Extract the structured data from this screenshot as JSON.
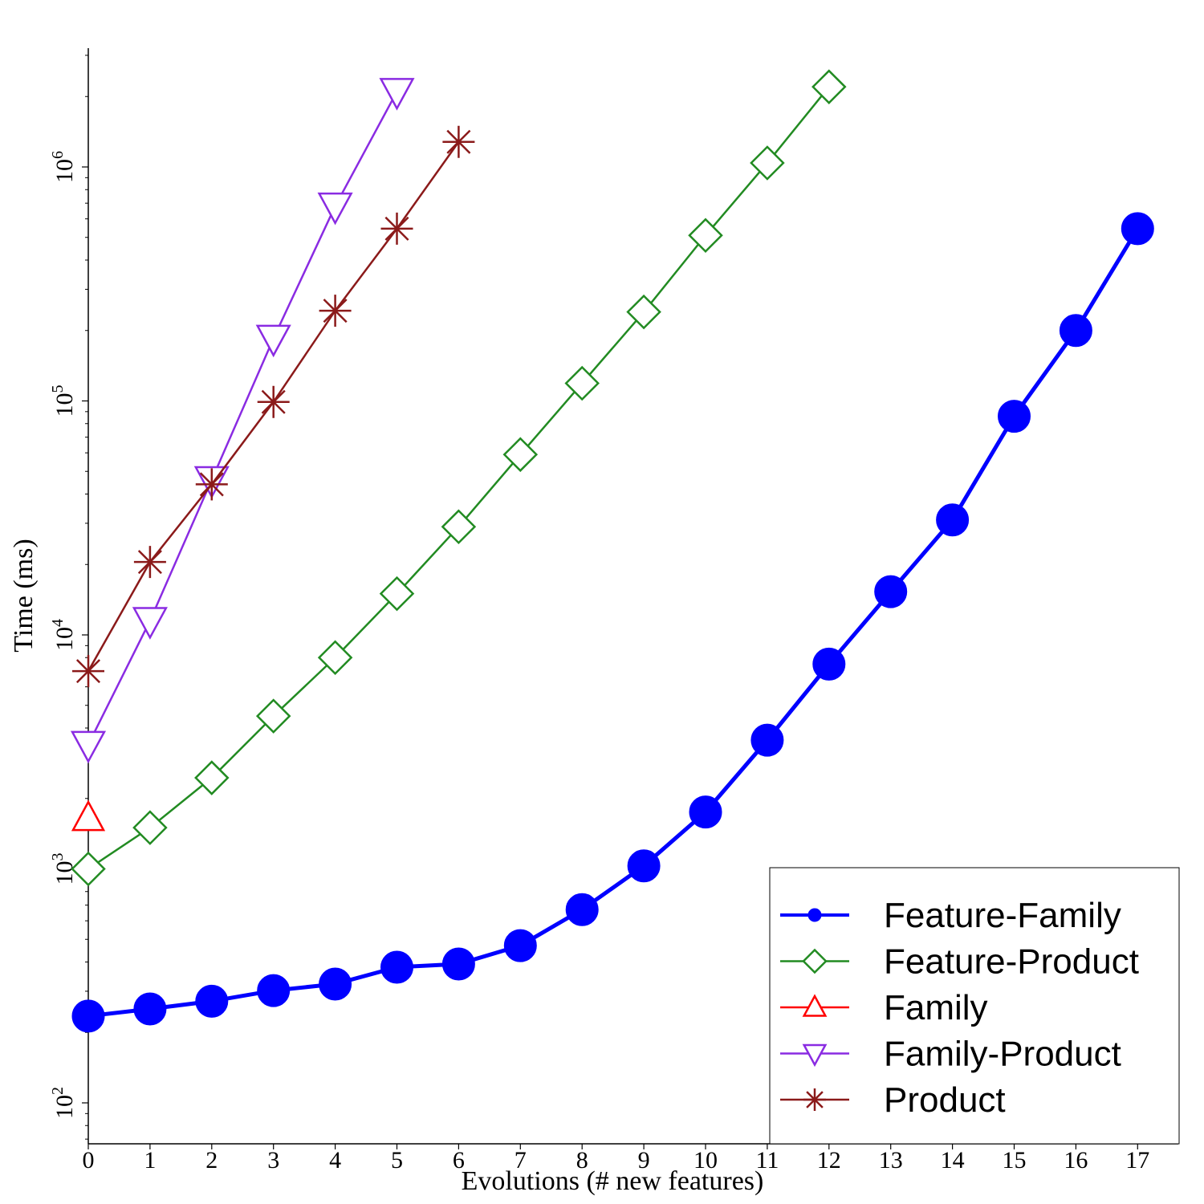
{
  "chart_data": {
    "type": "line",
    "yscale": "log",
    "xlabel": "Evolutions (# new features)",
    "ylabel": "Time (ms)",
    "xlim": [
      0,
      17.8
    ],
    "ylim": [
      70,
      4000000
    ],
    "x_ticks": [
      0,
      1,
      2,
      3,
      4,
      5,
      6,
      7,
      8,
      9,
      10,
      11,
      12,
      13,
      14,
      15,
      16,
      17
    ],
    "y_ticks": [
      {
        "value": 100,
        "base": "10",
        "exp": "2"
      },
      {
        "value": 1000,
        "base": "10",
        "exp": "3"
      },
      {
        "value": 10000,
        "base": "10",
        "exp": "4"
      },
      {
        "value": 100000,
        "base": "10",
        "exp": "5"
      },
      {
        "value": 1000000,
        "base": "10",
        "exp": "6"
      }
    ],
    "legend_position": "lower-right",
    "series": [
      {
        "name": "Feature-Family",
        "color": "#0000ff",
        "marker": "circle",
        "x": [
          0,
          1,
          2,
          3,
          4,
          5,
          6,
          7,
          8,
          9,
          10,
          11,
          12,
          13,
          14,
          15,
          16,
          17
        ],
        "values": [
          235,
          252,
          272,
          302,
          322,
          380,
          392,
          470,
          670,
          1030,
          1750,
          3550,
          7500,
          15300,
          31000,
          86000,
          200000,
          545000
        ]
      },
      {
        "name": "Feature-Product",
        "color": "#228b22",
        "marker": "diamond",
        "x": [
          0,
          1,
          2,
          3,
          4,
          5,
          6,
          7,
          8,
          9,
          10,
          11,
          12
        ],
        "values": [
          1000,
          1500,
          2450,
          4500,
          8000,
          15000,
          29000,
          59000,
          119000,
          240000,
          510000,
          1040000,
          2200000
        ]
      },
      {
        "name": "Family",
        "color": "#ff0000",
        "marker": "triangle-up",
        "x": [
          0
        ],
        "values": [
          1650
        ]
      },
      {
        "name": "Family-Product",
        "color": "#8a2be2",
        "marker": "triangle-down",
        "x": [
          0,
          1,
          2,
          3,
          4,
          5
        ],
        "values": [
          3400,
          11500,
          46000,
          185000,
          680000,
          2100000
        ]
      },
      {
        "name": "Product",
        "color": "#8b1a1a",
        "marker": "asterisk",
        "x": [
          0,
          1,
          2,
          3,
          4,
          5,
          6
        ],
        "values": [
          7000,
          20500,
          44000,
          99000,
          243000,
          545000,
          1280000
        ]
      }
    ]
  }
}
